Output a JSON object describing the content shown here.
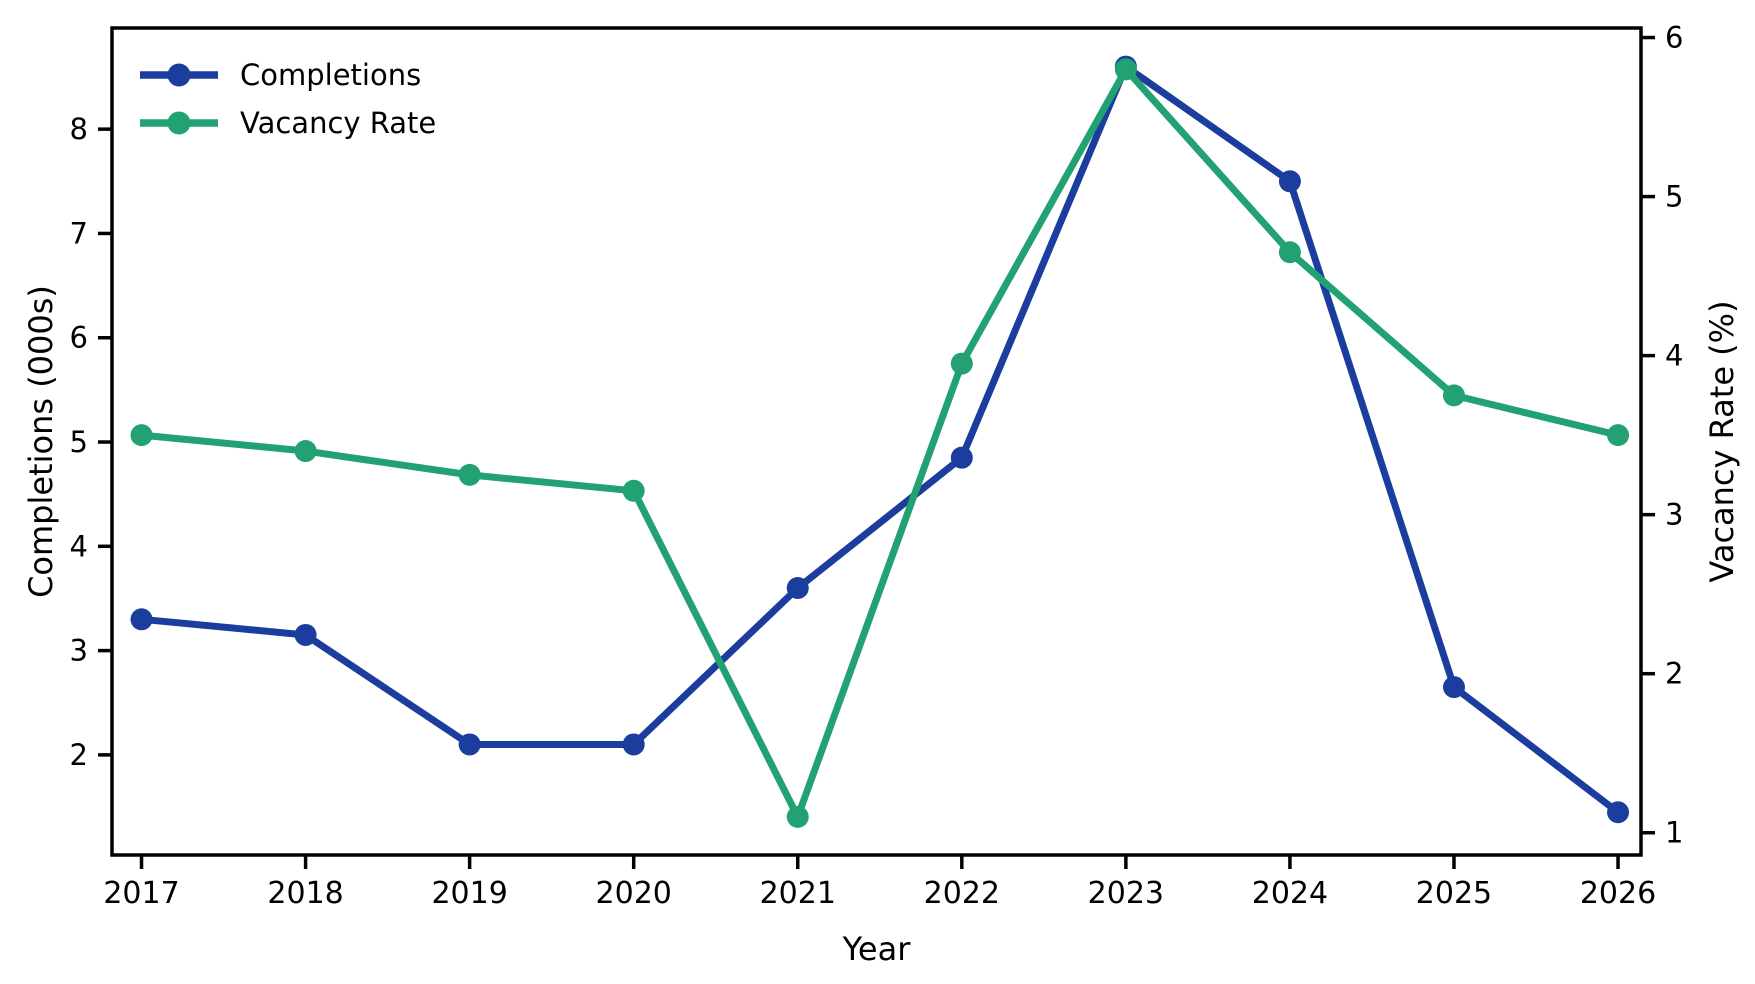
{
  "chart_data": {
    "type": "line",
    "title": "",
    "xlabel": "Year",
    "left_ylabel": "Completions (000s)",
    "right_ylabel": "Vacancy Rate (%)",
    "x": [
      2017,
      2018,
      2019,
      2020,
      2021,
      2022,
      2023,
      2024,
      2025,
      2026
    ],
    "series": [
      {
        "name": "Completions",
        "axis": "left",
        "color": "#1b3d9e",
        "values": [
          3.3,
          3.15,
          2.1,
          2.1,
          3.6,
          4.85,
          8.6,
          7.5,
          2.65,
          1.45
        ]
      },
      {
        "name": "Vacancy Rate",
        "axis": "right",
        "color": "#22a273",
        "values": [
          3.5,
          3.4,
          3.25,
          3.15,
          1.1,
          3.95,
          5.8,
          4.65,
          3.75,
          3.5
        ]
      }
    ],
    "xlim": [
      2016.82,
      2026.14
    ],
    "left_ylim": [
      1.04,
      8.97
    ],
    "right_ylim": [
      0.86,
      6.06
    ],
    "left_ticks": [
      2,
      3,
      4,
      5,
      6,
      7,
      8
    ],
    "right_ticks": [
      1,
      2,
      3,
      4,
      5,
      6
    ],
    "x_ticks": [
      "2017",
      "2018",
      "2019",
      "2020",
      "2021",
      "2022",
      "2023",
      "2024",
      "2025",
      "2026"
    ],
    "legend_position": "upper left",
    "legend_entries": [
      "Completions",
      "Vacancy Rate"
    ],
    "grid": false,
    "frame_color": "#000000",
    "background_color": "#ffffff"
  }
}
